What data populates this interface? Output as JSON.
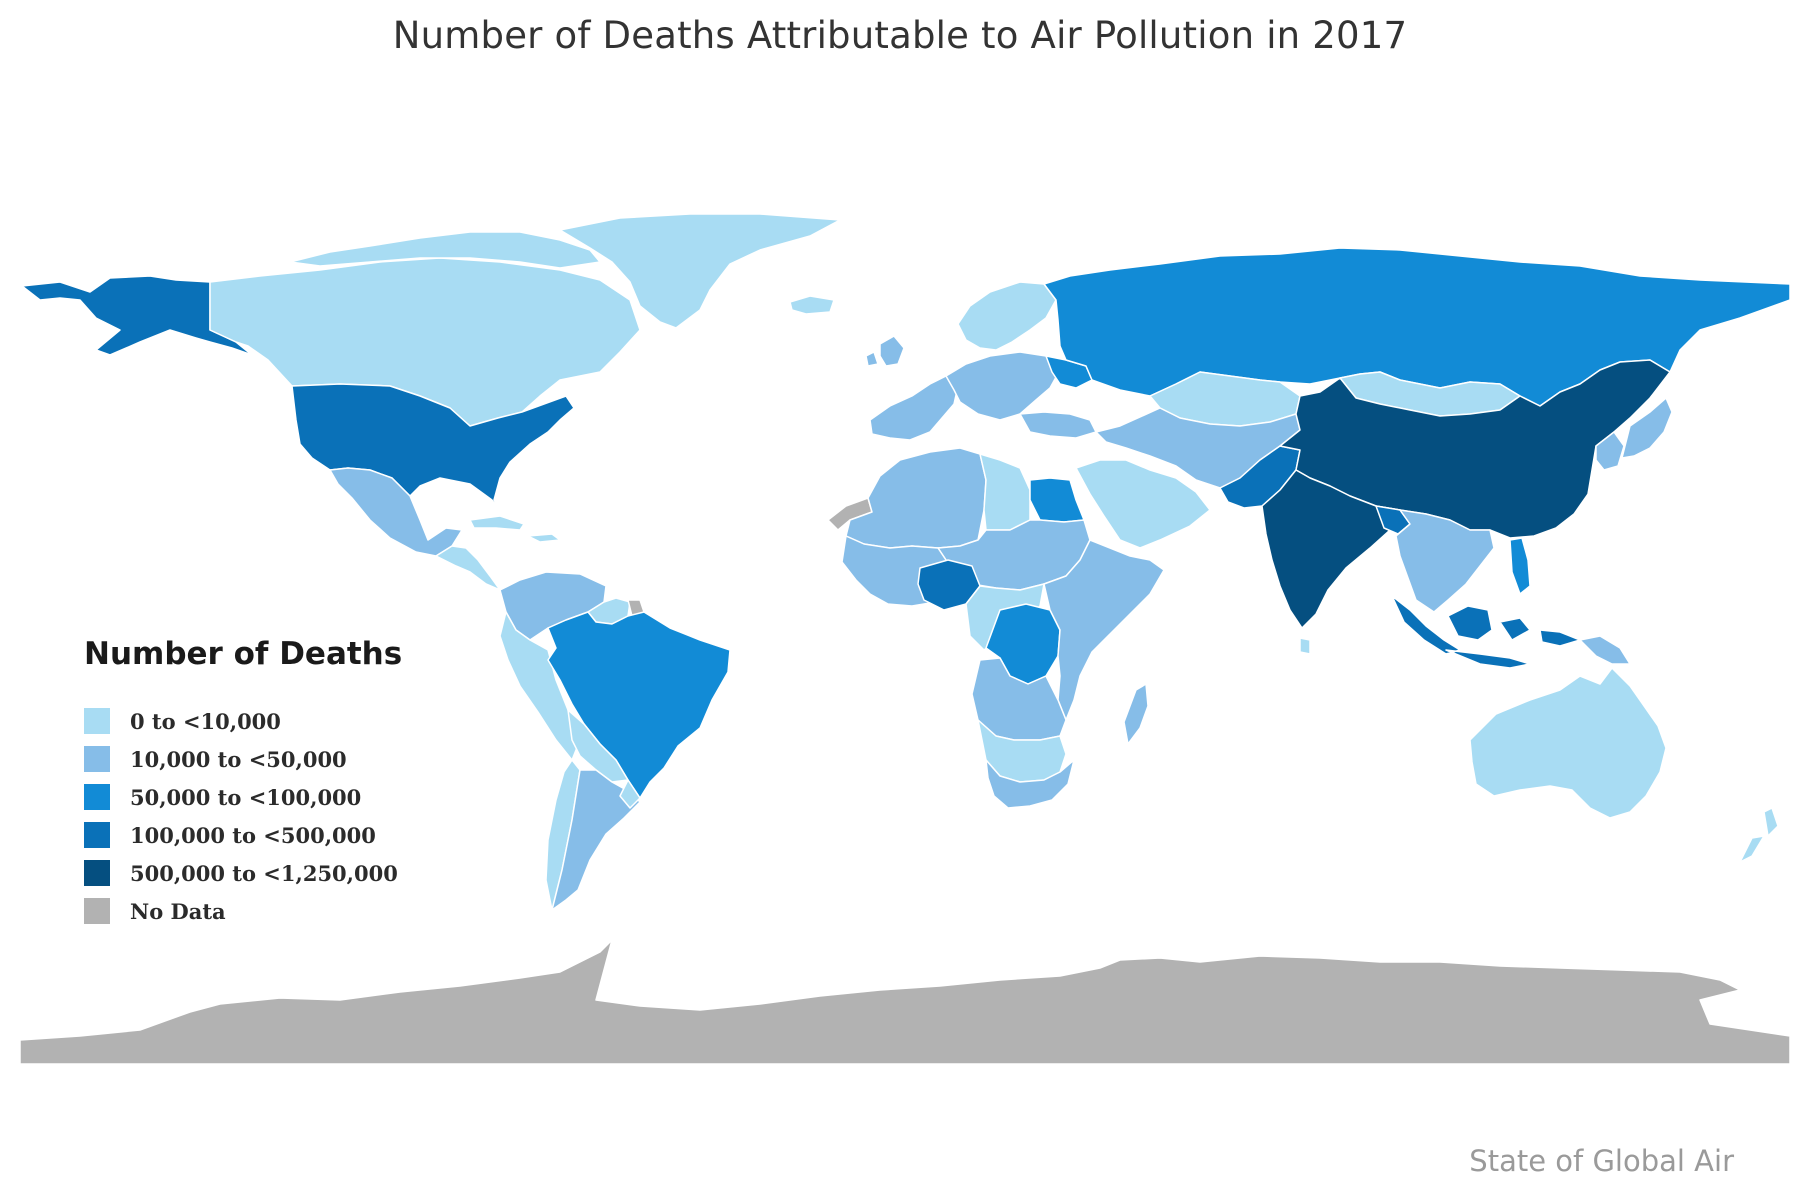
{
  "title": "Number of Deaths Attributable to Air Pollution in 2017",
  "source": "State of Global Air",
  "colors": {
    "c0": "#a8dcf3",
    "c1": "#86bde8",
    "c2": "#128bd6",
    "c3": "#0a71b8",
    "c4": "#054f80",
    "nodata": "#b2b2b2",
    "border": "#ffffff"
  },
  "legend": {
    "title": "Number of Deaths",
    "items": [
      {
        "label": "0 to <10,000",
        "class": "c0"
      },
      {
        "label": "10,000 to <50,000",
        "class": "c1"
      },
      {
        "label": "50,000 to <100,000",
        "class": "c2"
      },
      {
        "label": "100,000 to <500,000",
        "class": "c3"
      },
      {
        "label": "500,000 to <1,250,000",
        "class": "c4"
      },
      {
        "label": "No Data",
        "class": "nodata"
      }
    ]
  },
  "regions": [
    {
      "name": "alaska",
      "class": "c3"
    },
    {
      "name": "canada",
      "class": "c0"
    },
    {
      "name": "canada-arctic-islands",
      "class": "c0"
    },
    {
      "name": "greenland",
      "class": "c0"
    },
    {
      "name": "iceland",
      "class": "c0"
    },
    {
      "name": "united-states",
      "class": "c3"
    },
    {
      "name": "mexico",
      "class": "c1"
    },
    {
      "name": "central-america",
      "class": "c0"
    },
    {
      "name": "caribbean",
      "class": "c0"
    },
    {
      "name": "colombia-venezuela",
      "class": "c1"
    },
    {
      "name": "guianas",
      "class": "c0"
    },
    {
      "name": "french-guiana",
      "class": "nodata"
    },
    {
      "name": "peru-ecuador",
      "class": "c0"
    },
    {
      "name": "brazil",
      "class": "c2"
    },
    {
      "name": "bolivia-paraguay",
      "class": "c0"
    },
    {
      "name": "chile",
      "class": "c0"
    },
    {
      "name": "argentina",
      "class": "c1"
    },
    {
      "name": "uruguay",
      "class": "c0"
    },
    {
      "name": "western-sahara",
      "class": "nodata"
    },
    {
      "name": "north-west-africa",
      "class": "c1"
    },
    {
      "name": "libya",
      "class": "c0"
    },
    {
      "name": "egypt",
      "class": "c2"
    },
    {
      "name": "sahel",
      "class": "c1"
    },
    {
      "name": "west-africa",
      "class": "c1"
    },
    {
      "name": "nigeria",
      "class": "c3"
    },
    {
      "name": "central-africa",
      "class": "c0"
    },
    {
      "name": "dr-congo",
      "class": "c2"
    },
    {
      "name": "east-africa",
      "class": "c1"
    },
    {
      "name": "southern-africa",
      "class": "c0"
    },
    {
      "name": "angola-zambia",
      "class": "c1"
    },
    {
      "name": "south-africa",
      "class": "c1"
    },
    {
      "name": "madagascar",
      "class": "c1"
    },
    {
      "name": "iberia-western-europe",
      "class": "c1"
    },
    {
      "name": "uk-ireland",
      "class": "c1"
    },
    {
      "name": "scandinavia",
      "class": "c0"
    },
    {
      "name": "central-europe",
      "class": "c1"
    },
    {
      "name": "ukraine",
      "class": "c2"
    },
    {
      "name": "turkey",
      "class": "c1"
    },
    {
      "name": "russia",
      "class": "c2"
    },
    {
      "name": "kazakhstan",
      "class": "c0"
    },
    {
      "name": "mongolia",
      "class": "c0"
    },
    {
      "name": "china",
      "class": "c4"
    },
    {
      "name": "india",
      "class": "c4"
    },
    {
      "name": "pakistan",
      "class": "c3"
    },
    {
      "name": "iran-central-asia",
      "class": "c1"
    },
    {
      "name": "arabian-peninsula",
      "class": "c0"
    },
    {
      "name": "southeast-asia",
      "class": "c1"
    },
    {
      "name": "bangladesh",
      "class": "c3"
    },
    {
      "name": "japan",
      "class": "c1"
    },
    {
      "name": "korea",
      "class": "c1"
    },
    {
      "name": "philippines",
      "class": "c2"
    },
    {
      "name": "indonesia",
      "class": "c3"
    },
    {
      "name": "papua-new-guinea",
      "class": "c1"
    },
    {
      "name": "australia",
      "class": "c0"
    },
    {
      "name": "new-zealand",
      "class": "c0"
    },
    {
      "name": "sri-lanka",
      "class": "c0"
    },
    {
      "name": "antarctica",
      "class": "nodata"
    }
  ]
}
